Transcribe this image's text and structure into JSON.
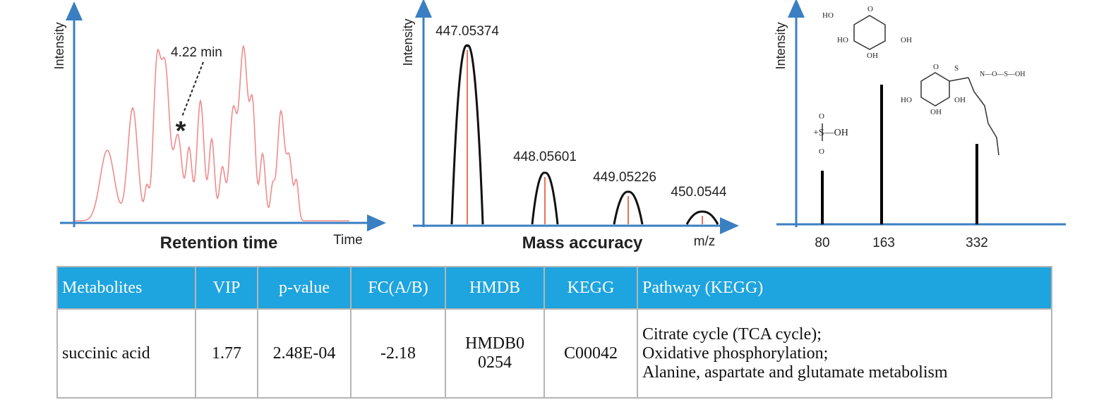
{
  "panels": [
    {
      "y_label": "Intensity",
      "annotation": "4.22 min",
      "marker": "*",
      "x_title": "Retention time",
      "x_label": "Time"
    },
    {
      "y_label": "Intensity",
      "peak_labels": [
        "447.05374",
        "448.05601",
        "449.05226",
        "450.0544"
      ],
      "x_title": "Mass accuracy",
      "x_label": "m/z"
    },
    {
      "y_label": "Intensity",
      "x_labels": [
        "80",
        "163",
        "332"
      ],
      "structures": [
        [
          "HO",
          "O",
          "HO",
          "OH",
          "OH"
        ],
        [
          "O",
          "+S—OH",
          "O"
        ],
        [
          "O",
          "S",
          "N—O—S—OH",
          "HO",
          "OH",
          "OH"
        ]
      ]
    }
  ],
  "table": {
    "header": [
      "Metabolites",
      "VIP",
      "p-value",
      "FC(A/B)",
      "HMDB",
      "KEGG",
      "Pathway (KEGG)"
    ],
    "rows": [
      [
        "succinic acid",
        "1.77",
        "2.48E-04",
        "-2.18",
        "HMDB00254",
        "C00042",
        [
          "Citrate cycle (TCA cycle);",
          "Oxidative phosphorylation;",
          "Alanine, aspartate and glutamate metabolism"
        ]
      ]
    ]
  }
}
